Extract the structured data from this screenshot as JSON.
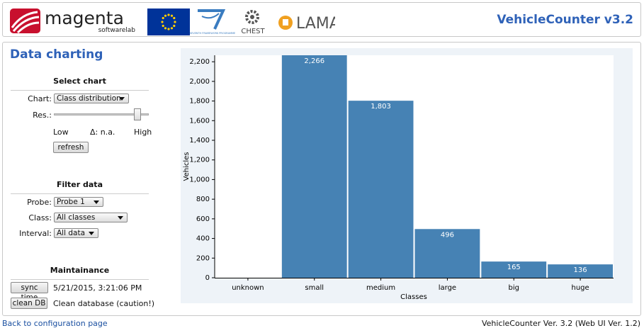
{
  "header": {
    "brand": "magenta",
    "brand_sub": "softwarelab",
    "fp7": "SEVENTH FRAMEWORK PROGRAMME",
    "chest": "CHEST",
    "lama": "LAMA",
    "app_title": "VehicleCounter v3.2"
  },
  "sidebar": {
    "title": "Data charting",
    "select_chart": {
      "heading": "Select chart",
      "chart_label": "Chart:",
      "chart_value": "Class distribution",
      "res_label": "Res.:",
      "low": "Low",
      "delta": "Δ: n.a.",
      "high": "High",
      "refresh": "refresh"
    },
    "filter": {
      "heading": "Filter data",
      "probe_label": "Probe:",
      "probe_value": "Probe 1",
      "class_label": "Class:",
      "class_value": "All classes",
      "interval_label": "Interval:",
      "interval_value": "All data"
    },
    "maintenance": {
      "heading": "Maintainance",
      "sync_button": "sync time",
      "sync_time": "5/21/2015, 3:21:06 PM",
      "clean_button": "clean DB",
      "clean_text": "Clean database (caution!)"
    }
  },
  "chart_data": {
    "type": "bar",
    "x_label": "Classes",
    "y_label": "Vehicles",
    "categories": [
      "unknown",
      "small",
      "medium",
      "large",
      "big",
      "huge"
    ],
    "values": [
      0,
      2266,
      1803,
      496,
      165,
      136
    ],
    "value_labels": [
      null,
      "2,266",
      "1,803",
      "496",
      "165",
      "136"
    ],
    "color": "#4682b4",
    "ylim": [
      0,
      2266
    ],
    "yticks": [
      0,
      200,
      400,
      600,
      800,
      {
        "value": 1000,
        "label": "1,000"
      },
      {
        "value": 1200,
        "label": "1,200"
      },
      {
        "value": 1400,
        "label": "1,400"
      },
      {
        "value": 1600,
        "label": "1,600"
      },
      {
        "value": 1800,
        "label": "1,800"
      },
      {
        "value": 2000,
        "label": "2,000"
      },
      {
        "value": 2200,
        "label": "2,200"
      }
    ],
    "grid": false
  },
  "footer": {
    "link": "Back to configuration page",
    "version": "VehicleCounter Ver. 3.2 (Web UI Ver. 1.2)"
  }
}
